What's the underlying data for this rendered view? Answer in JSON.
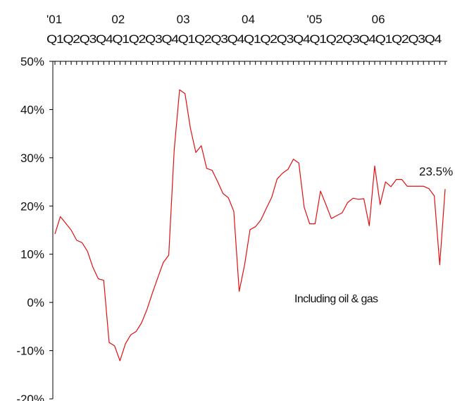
{
  "chart_data": {
    "type": "line",
    "title": "",
    "xlabel": "",
    "ylabel": "",
    "ylim": [
      -20,
      50
    ],
    "y_ticks": [
      50,
      40,
      30,
      20,
      10,
      0,
      -10,
      -20
    ],
    "y_tick_labels": [
      "50%",
      "40%",
      "30%",
      "20%",
      "10%",
      "0%",
      "-10%",
      "-20%"
    ],
    "grid": false,
    "x_axis_position": "top",
    "x_year_labels": [
      {
        "label": "'01",
        "month_index": 0
      },
      {
        "label": "02",
        "month_index": 12
      },
      {
        "label": "03",
        "month_index": 24
      },
      {
        "label": "04",
        "month_index": 36
      },
      {
        "label": "'05",
        "month_index": 48
      },
      {
        "label": "06",
        "month_index": 60
      }
    ],
    "x_quarter_labels": "Q1Q2Q3Q4Q1Q2Q3Q4Q1Q2Q3Q4Q1Q2Q3Q4Q1Q2Q3Q4Q1Q2Q3Q4",
    "months_total": 72,
    "series": [
      {
        "color": "#e01010",
        "values": [
          14.2,
          17.8,
          16.4,
          15.0,
          12.9,
          12.4,
          10.6,
          7.3,
          4.9,
          4.6,
          -8.3,
          -9.0,
          -12.1,
          -8.6,
          -6.7,
          -6.0,
          -4.2,
          -1.4,
          2.0,
          5.2,
          8.3,
          9.8,
          31.5,
          44.1,
          43.3,
          36.1,
          31.1,
          32.5,
          27.8,
          27.4,
          25.1,
          22.6,
          21.7,
          18.9,
          2.3,
          7.8,
          15.1,
          15.7,
          17.1,
          19.5,
          21.8,
          25.6,
          26.8,
          27.6,
          29.7,
          28.9,
          19.7,
          16.3,
          16.3,
          23.1,
          20.3,
          17.4,
          18.0,
          18.6,
          20.7,
          21.6,
          21.4,
          21.5,
          15.9,
          28.3,
          20.3,
          25.0,
          24.0,
          25.5,
          25.5,
          24.1,
          24.1,
          24.1,
          24.1,
          23.6,
          22.1,
          7.8,
          23.5
        ]
      }
    ],
    "end_label": "23.5%",
    "annotation": "Including oil & gas"
  },
  "colors": {
    "line": "#e01010",
    "axis": "#000000",
    "text": "#111111"
  }
}
